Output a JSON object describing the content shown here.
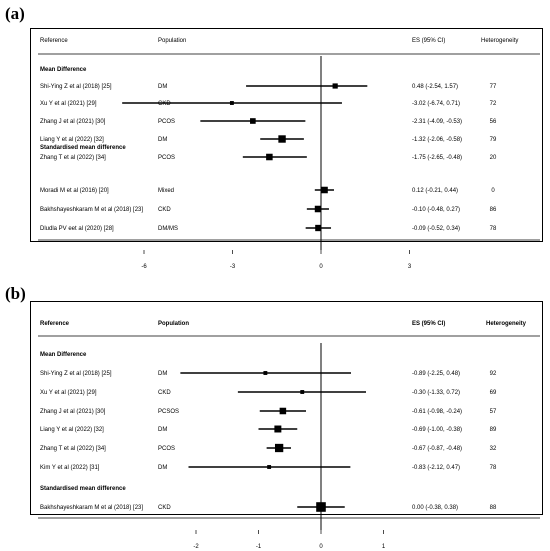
{
  "chart_data": [
    {
      "panel_label": "(a)",
      "type": "forest",
      "headers": {
        "reference": "Reference",
        "population": "Population",
        "es": "ES (95% CI)",
        "heterogeneity": "Heterogeneity"
      },
      "headers_bold": false,
      "xlim": [
        -7.5,
        5
      ],
      "x_ticks": [
        -6,
        -3,
        0,
        3
      ],
      "groups": [
        {
          "title": "Mean Difference",
          "rows": [
            {
              "reference": "Shi-Ying Z et al (2018) [25]",
              "population": "DM",
              "es": 0.48,
              "lo": -2.54,
              "hi": 1.57,
              "es_text": "0.48 (-2.54, 1.57)",
              "heterogeneity": "77",
              "weight": 1.0
            },
            {
              "reference": "Xu Y et al (2021) [29]",
              "population": "CKD",
              "es": -3.02,
              "lo": -6.74,
              "hi": 0.71,
              "es_text": "-3.02 (-6.74, 0.71)",
              "heterogeneity": "72",
              "weight": 0.4
            },
            {
              "reference": "Zhang J et al (2021) [30]",
              "population": "PCOS",
              "es": -2.31,
              "lo": -4.09,
              "hi": -0.53,
              "es_text": "-2.31 (-4.09, -0.53)",
              "heterogeneity": "56",
              "weight": 1.2
            },
            {
              "reference": "Liang Y et al (2022) [32]",
              "population": "DM",
              "es": -1.32,
              "lo": -2.06,
              "hi": -0.58,
              "es_text": "-1.32 (-2.06, -0.58)",
              "heterogeneity": "79",
              "weight": 2.0
            },
            {
              "reference": "Zhang T et al (2022) [34]",
              "population": "PCOS",
              "es": -1.75,
              "lo": -2.65,
              "hi": -0.48,
              "es_text": "-1.75 (-2.65, -0.48)",
              "heterogeneity": "20",
              "weight": 1.6
            }
          ]
        },
        {
          "title": "Standardised mean difference",
          "rows": [
            {
              "reference": "Moradi M et al (2016) [20]",
              "population": "Mixed",
              "es": 0.12,
              "lo": -0.21,
              "hi": 0.44,
              "es_text": "0.12 (-0.21, 0.44)",
              "heterogeneity": "0",
              "weight": 1.6
            },
            {
              "reference": "Bakhshayeshkaram M et al (2018) [23]",
              "population": "CKD",
              "es": -0.1,
              "lo": -0.48,
              "hi": 0.27,
              "es_text": "-0.10 (-0.48, 0.27)",
              "heterogeneity": "86",
              "weight": 1.6
            },
            {
              "reference": "Dludla PV eet al (2020) [28]",
              "population": "DM/MS",
              "es": -0.09,
              "lo": -0.52,
              "hi": 0.34,
              "es_text": "-0.09 (-0.52, 0.34)",
              "heterogeneity": "78",
              "weight": 1.5
            }
          ]
        }
      ]
    },
    {
      "panel_label": "(b)",
      "type": "forest",
      "headers": {
        "reference": "Reference",
        "population": "Population",
        "es": "ES (95% CI)",
        "heterogeneity": "Heterogeneity"
      },
      "headers_bold": true,
      "xlim": [
        -2.7,
        1.7
      ],
      "x_ticks": [
        -2,
        -1,
        0,
        1
      ],
      "groups": [
        {
          "title": "Mean Difference",
          "rows": [
            {
              "reference": "Shi-Ying Z et al (2018) [25]",
              "population": "DM",
              "es": -0.89,
              "lo": -2.25,
              "hi": 0.48,
              "es_text": "-0.89 (-2.25, 0.48)",
              "heterogeneity": "92",
              "weight": 0.4
            },
            {
              "reference": "Xu Y et al (2021) [29]",
              "population": "CKD",
              "es": -0.3,
              "lo": -1.33,
              "hi": 0.72,
              "es_text": "-0.30 (-1.33, 0.72)",
              "heterogeneity": "69",
              "weight": 0.4
            },
            {
              "reference": "Zhang J et al (2021) [30]",
              "population": "PCSOS",
              "es": -0.61,
              "lo": -0.98,
              "hi": -0.24,
              "es_text": "-0.61 (-0.98, -0.24)",
              "heterogeneity": "57",
              "weight": 1.6
            },
            {
              "reference": "Liang Y et al (2022) [32]",
              "population": "DM",
              "es": -0.69,
              "lo": -1.0,
              "hi": -0.38,
              "es_text": "-0.69 (-1.00, -0.38)",
              "heterogeneity": "89",
              "weight": 1.8
            },
            {
              "reference": "Zhang T et al (2022) [34]",
              "population": "PCOS",
              "es": -0.67,
              "lo": -0.87,
              "hi": -0.48,
              "es_text": "-0.67 (-0.87, -0.48)",
              "heterogeneity": "32",
              "weight": 2.4
            },
            {
              "reference": "Kim Y et al (2022) [31]",
              "population": "DM",
              "es": -0.83,
              "lo": -2.12,
              "hi": 0.47,
              "es_text": "-0.83 (-2.12, 0.47)",
              "heterogeneity": "78",
              "weight": 0.4
            }
          ]
        },
        {
          "title": "Standardised mean difference",
          "rows": [
            {
              "reference": "Bakhshayeshkaram M et al (2018) [23]",
              "population": "CKD",
              "es": 0.0,
              "lo": -0.38,
              "hi": 0.38,
              "es_text": "0.00 (-0.38, 0.38)",
              "heterogeneity": "88",
              "weight": 3.0
            }
          ]
        }
      ]
    }
  ]
}
